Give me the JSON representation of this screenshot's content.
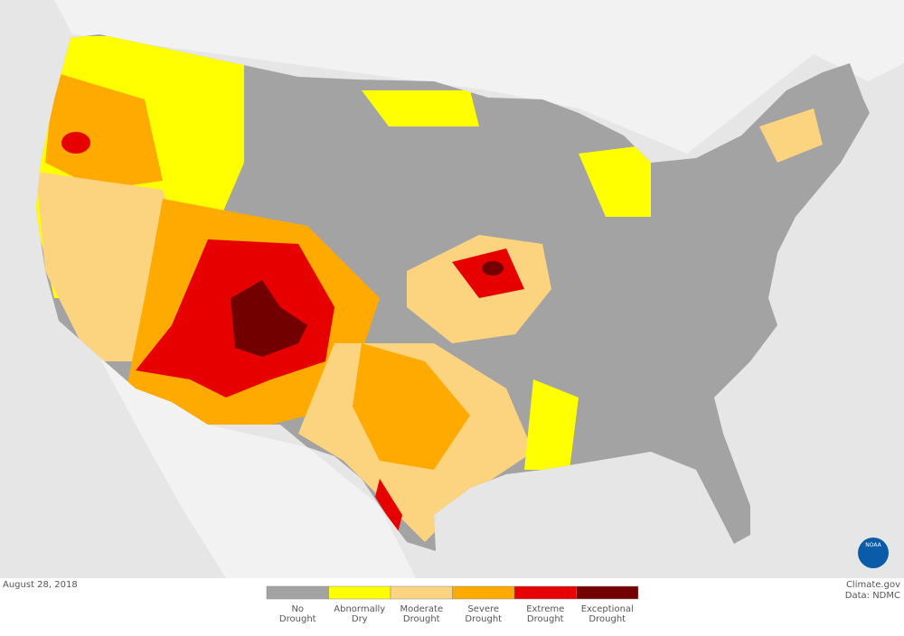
{
  "date": "August 28, 2018",
  "credit": "Climate.gov",
  "source": "Data: NDMC",
  "logo": "NOAA",
  "legend": [
    {
      "label": [
        "No",
        "Drought"
      ],
      "color": "#a3a3a3"
    },
    {
      "label": [
        "Abnormally",
        "Dry"
      ],
      "color": "#ffff00"
    },
    {
      "label": [
        "Moderate",
        "Drought"
      ],
      "color": "#fcd37f"
    },
    {
      "label": [
        "Severe",
        "Drought"
      ],
      "color": "#ffaa00"
    },
    {
      "label": [
        "Extreme",
        "Drought"
      ],
      "color": "#e60000"
    },
    {
      "label": [
        "Exceptional",
        "Drought"
      ],
      "color": "#730000"
    }
  ]
}
